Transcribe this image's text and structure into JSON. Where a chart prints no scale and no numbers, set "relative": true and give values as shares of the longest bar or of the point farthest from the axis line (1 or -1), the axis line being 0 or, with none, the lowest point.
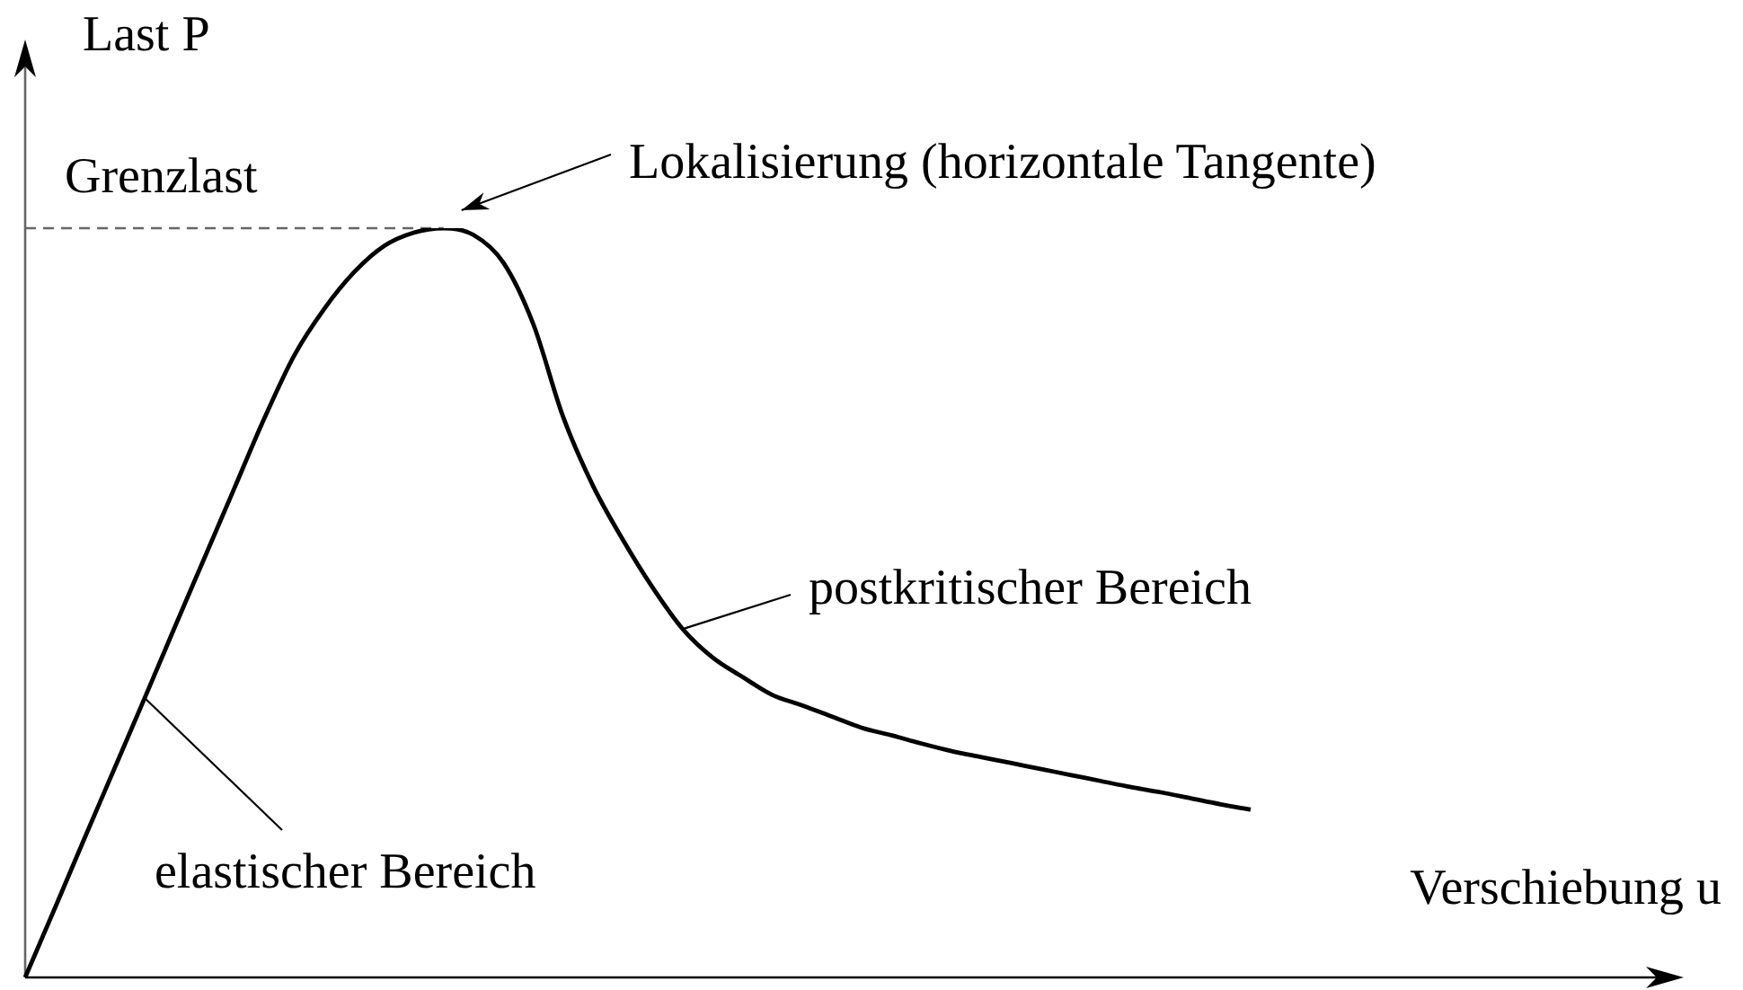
{
  "chart_data": {
    "type": "line",
    "relative": true,
    "xlabel": "Verschiebung u",
    "ylabel": "Last P",
    "categories": [
      null,
      null,
      null,
      null,
      null,
      null,
      null,
      null,
      null,
      null,
      null,
      null,
      null,
      null,
      null,
      null,
      null,
      null,
      null,
      null,
      null,
      null,
      null,
      null,
      null,
      null,
      null,
      null,
      null,
      null,
      null,
      null,
      null,
      null,
      null,
      null,
      null,
      null,
      null,
      null,
      null,
      null
    ],
    "values": [
      0,
      0.093,
      0.187,
      0.28,
      0.373,
      0.467,
      0.56,
      0.653,
      0.746,
      0.83,
      0.892,
      0.941,
      0.976,
      0.994,
      1,
      0.991,
      0.954,
      0.872,
      0.748,
      0.656,
      0.584,
      0.52,
      0.465,
      0.427,
      0.401,
      0.377,
      0.363,
      0.348,
      0.333,
      0.323,
      0.312,
      0.302,
      0.294,
      0.286,
      0.278,
      0.27,
      0.262,
      0.254,
      0.247,
      0.239,
      0.231,
      0.224
    ],
    "color": "#000000",
    "ref_lines": [
      {
        "axis": "y",
        "value": 1,
        "label": "Grenzlast",
        "line_style": "dashed",
        "color": "#666666"
      }
    ],
    "annotations": [
      "Lokalisierung (horizontale Tangente)",
      "postkritischer Bereich",
      "elastischer Bereich"
    ]
  }
}
